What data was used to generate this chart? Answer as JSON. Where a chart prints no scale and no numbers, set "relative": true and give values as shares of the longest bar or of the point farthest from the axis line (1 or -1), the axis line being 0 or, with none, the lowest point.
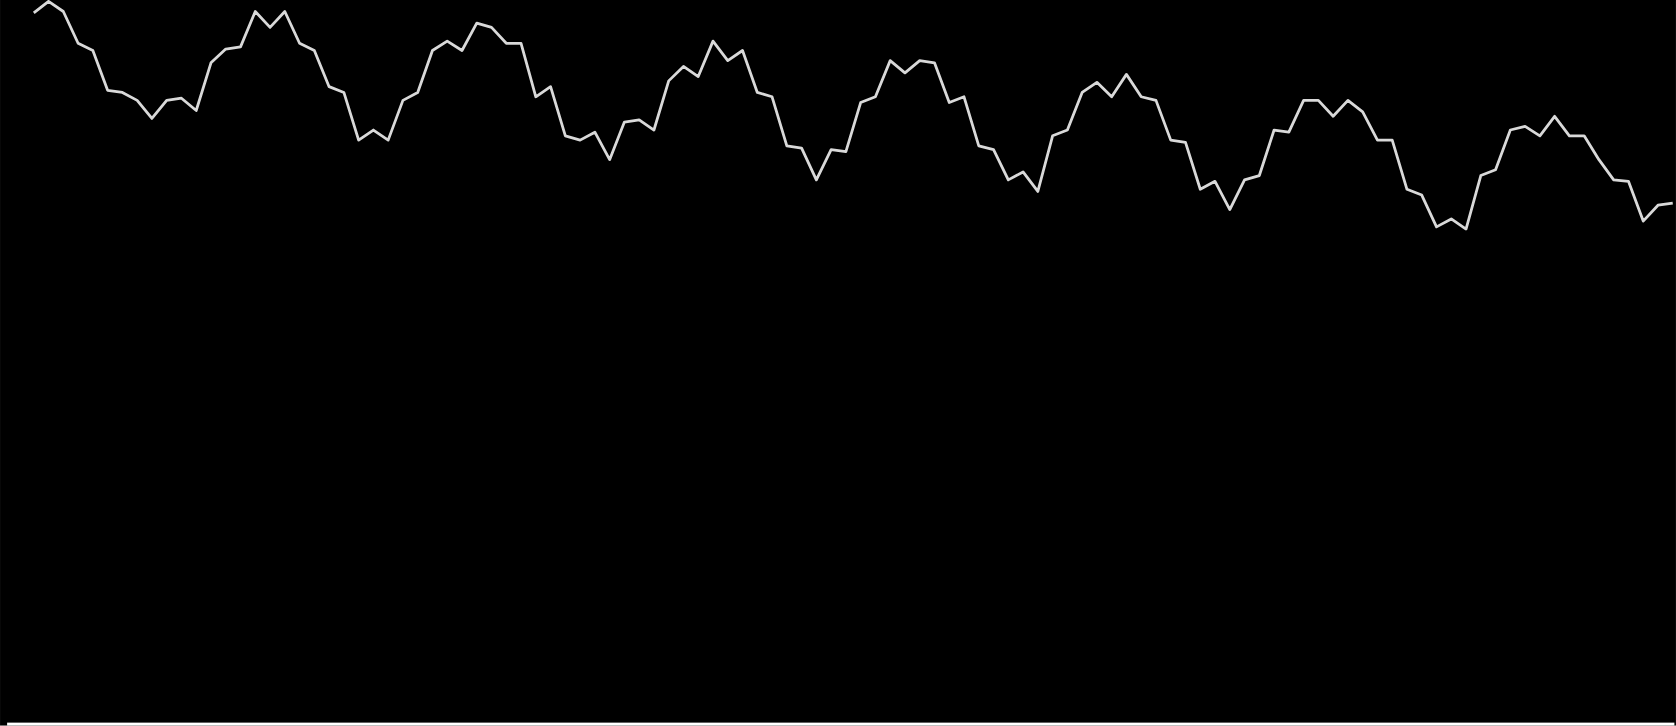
{
  "chart_data": {
    "type": "line",
    "relative": true,
    "categories": [
      null,
      null,
      null,
      null,
      null,
      null,
      null,
      null,
      null,
      null,
      null,
      null,
      null,
      null,
      null,
      null,
      null,
      null,
      null,
      null,
      null,
      null,
      null,
      null,
      null,
      null,
      null,
      null,
      null,
      null,
      null,
      null,
      null,
      null,
      null,
      null,
      null,
      null,
      null,
      null,
      null,
      null,
      null,
      null,
      null,
      null,
      null,
      null,
      null,
      null,
      null,
      null,
      null,
      null,
      null,
      null,
      null,
      null,
      null,
      null,
      null,
      null,
      null,
      null,
      null,
      null,
      null,
      null,
      null,
      null,
      null,
      null,
      null,
      null,
      null,
      null,
      null,
      null,
      null,
      null,
      null,
      null,
      null,
      null,
      null,
      null,
      null,
      null,
      null,
      null,
      null,
      null,
      null,
      null,
      null,
      null,
      null,
      null,
      null,
      null,
      null,
      null,
      null,
      null,
      null,
      null,
      null,
      null,
      null,
      null,
      null,
      null
    ],
    "series": [
      {
        "color": "#d9d9d9",
        "values": [
          0.984,
          1,
          0.986,
          0.942,
          0.932,
          0.877,
          0.874,
          0.863,
          0.838,
          0.863,
          0.866,
          0.849,
          0.915,
          0.934,
          0.937,
          0.986,
          0.964,
          0.986,
          0.942,
          0.932,
          0.882,
          0.874,
          0.808,
          0.822,
          0.808,
          0.863,
          0.874,
          0.932,
          0.945,
          0.932,
          0.97,
          0.964,
          0.942,
          0.942,
          0.868,
          0.882,
          0.814,
          0.808,
          0.819,
          0.781,
          0.833,
          0.836,
          0.822,
          0.89,
          0.91,
          0.896,
          0.945,
          0.918,
          0.932,
          0.874,
          0.868,
          0.8,
          0.797,
          0.753,
          0.795,
          0.792,
          0.86,
          0.868,
          0.918,
          0.901,
          0.918,
          0.915,
          0.86,
          0.868,
          0.8,
          0.795,
          0.753,
          0.764,
          0.737,
          0.814,
          0.822,
          0.874,
          0.888,
          0.868,
          0.899,
          0.868,
          0.863,
          0.808,
          0.805,
          0.74,
          0.751,
          0.712,
          0.753,
          0.759,
          0.822,
          0.819,
          0.863,
          0.863,
          0.841,
          0.863,
          0.847,
          0.808,
          0.808,
          0.74,
          0.732,
          0.688,
          0.699,
          0.685,
          0.759,
          0.767,
          0.822,
          0.827,
          0.814,
          0.841,
          0.814,
          0.814,
          0.781,
          0.753,
          0.751,
          0.696,
          0.718,
          0.721
        ]
      }
    ]
  }
}
